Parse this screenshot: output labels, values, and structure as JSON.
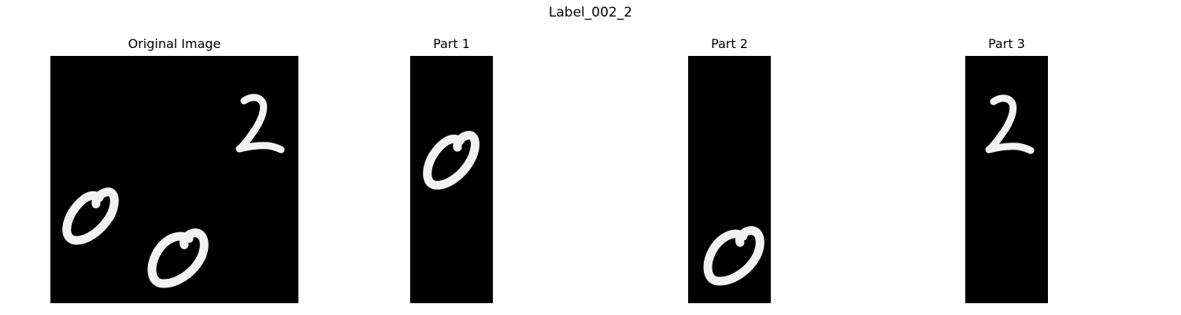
{
  "figure": {
    "suptitle": "Label_002_2"
  },
  "panels": [
    {
      "title": "Original Image",
      "digits": [
        "0",
        "2",
        "0"
      ]
    },
    {
      "title": "Part 1",
      "digits": [
        "0"
      ]
    },
    {
      "title": "Part 2",
      "digits": [
        "0"
      ]
    },
    {
      "title": "Part 3",
      "digits": [
        "2"
      ]
    }
  ],
  "colors": {
    "background": "#ffffff",
    "image_background": "#000000",
    "stroke": "#f2f2f2"
  }
}
